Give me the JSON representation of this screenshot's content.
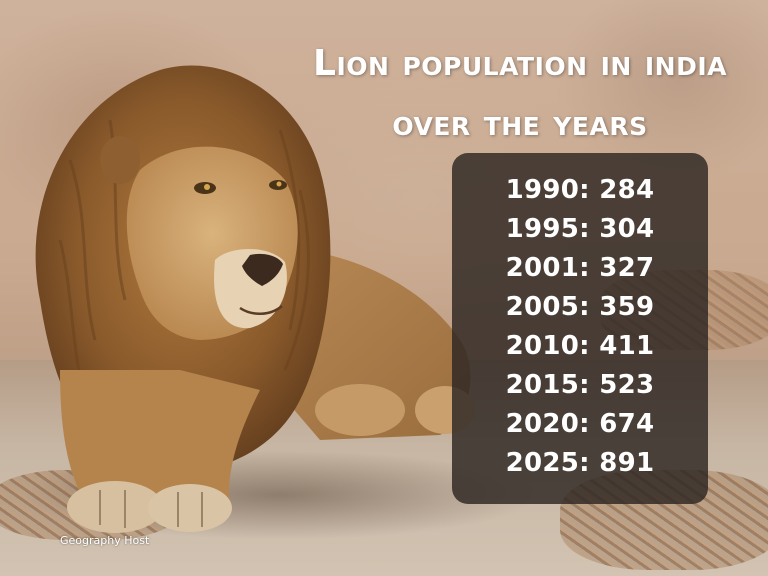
{
  "title": {
    "line1": "Lion population in india",
    "line2": "over the years"
  },
  "population": [
    {
      "year": "1990",
      "value": "284",
      "label": "1990: 284"
    },
    {
      "year": "1995",
      "value": "304",
      "label": "1995: 304"
    },
    {
      "year": "2001",
      "value": "327",
      "label": "2001: 327"
    },
    {
      "year": "2005",
      "value": "359",
      "label": "2005: 359"
    },
    {
      "year": "2010",
      "value": "411",
      "label": "2010: 411"
    },
    {
      "year": "2015",
      "value": "523",
      "label": "2015: 523"
    },
    {
      "year": "2020",
      "value": "674",
      "label": "2020: 674"
    },
    {
      "year": "2025",
      "value": "891",
      "label": "2025: 891"
    }
  ],
  "watermark": "Geography Host",
  "colors": {
    "text": "#ffffff",
    "panel": "#2d2622",
    "wall": "#cfb29c",
    "mane": "#8a5a2b"
  },
  "image_subject": "lion-photo"
}
